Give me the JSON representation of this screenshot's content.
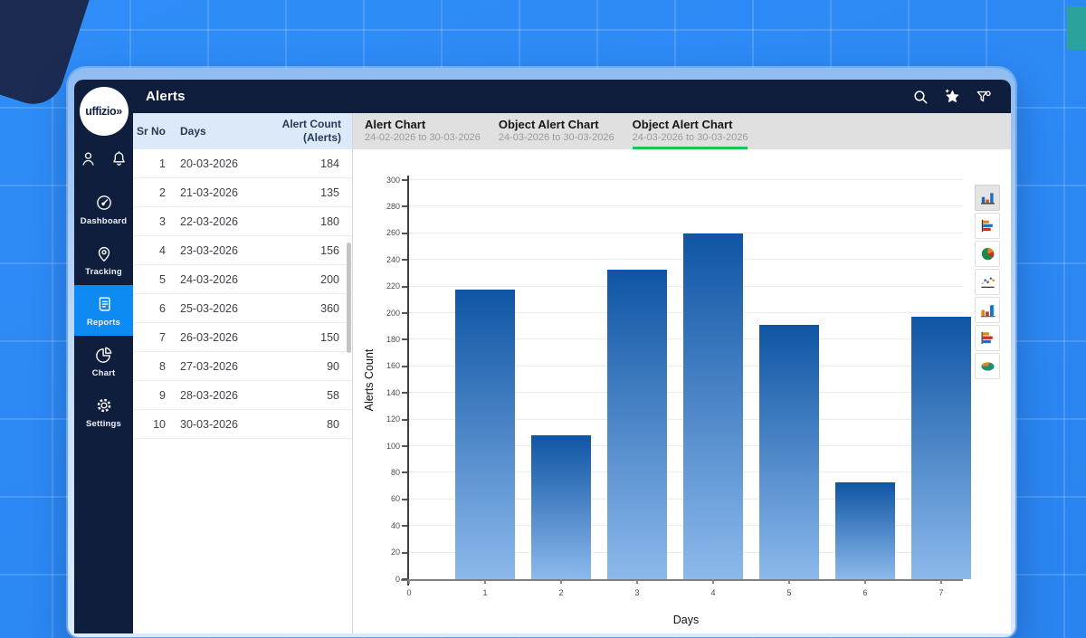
{
  "header": {
    "title": "Alerts",
    "icons": [
      "search",
      "star",
      "filter-settings"
    ]
  },
  "sidebar": {
    "logo_text": "uffizio»",
    "account_icons": [
      "user",
      "bell"
    ],
    "items": [
      {
        "id": "dashboard",
        "icon": "dashboard",
        "label": "Dashboard",
        "active": false
      },
      {
        "id": "tracking",
        "icon": "tracking",
        "label": "Tracking",
        "active": false
      },
      {
        "id": "reports",
        "icon": "reports",
        "label": "Reports",
        "active": true
      },
      {
        "id": "chart",
        "icon": "chart",
        "label": "Chart",
        "active": false
      },
      {
        "id": "settings",
        "icon": "settings",
        "label": "Settings",
        "active": false
      }
    ]
  },
  "table": {
    "columns": [
      "Sr No",
      "Days",
      "Alert Count (Alerts)"
    ],
    "rows": [
      [
        1,
        "20-03-2026",
        184
      ],
      [
        2,
        "21-03-2026",
        135
      ],
      [
        3,
        "22-03-2026",
        180
      ],
      [
        4,
        "23-03-2026",
        156
      ],
      [
        5,
        "24-03-2026",
        200
      ],
      [
        6,
        "25-03-2026",
        360
      ],
      [
        7,
        "26-03-2026",
        150
      ],
      [
        8,
        "27-03-2026",
        90
      ],
      [
        9,
        "28-03-2026",
        58
      ],
      [
        10,
        "30-03-2026",
        80
      ]
    ]
  },
  "tabs": [
    {
      "title": "Alert Chart",
      "subtitle": "24-02-2026 to 30-03-2026",
      "active": false
    },
    {
      "title": "Object Alert Chart",
      "subtitle": "24-03-2026 to 30-03-2026",
      "active": false
    },
    {
      "title": "Object Alert Chart",
      "subtitle": "24-03-2026 to 30-03-2026",
      "active": true
    }
  ],
  "chart_data": {
    "type": "bar",
    "x": [
      1,
      2,
      3,
      4,
      5,
      6,
      7
    ],
    "values": [
      218,
      108,
      233,
      260,
      191,
      73,
      197
    ],
    "xticks": [
      0,
      1,
      2,
      3,
      4,
      5,
      6,
      7
    ],
    "title": "",
    "xlabel": "Days",
    "ylabel": "Alerts Count",
    "ylim": [
      0,
      300
    ],
    "ytick_step": 20,
    "grid": true,
    "legend": false,
    "bar_color_top": "#0f55a4",
    "bar_color_bottom": "#8cb9ec"
  },
  "chart_toolbar": {
    "tools": [
      "column-chart",
      "bar-chart",
      "pie-chart",
      "line-chart",
      "column-3d",
      "bar-3d",
      "pie-3d"
    ],
    "selected": 0
  },
  "colors": {
    "background_blue": "#2e8cf5",
    "navy": "#101e3d",
    "accent_blue": "#0d8bf2",
    "tab_underline_green": "#19c653",
    "table_header_bg": "#dbe9f9"
  }
}
